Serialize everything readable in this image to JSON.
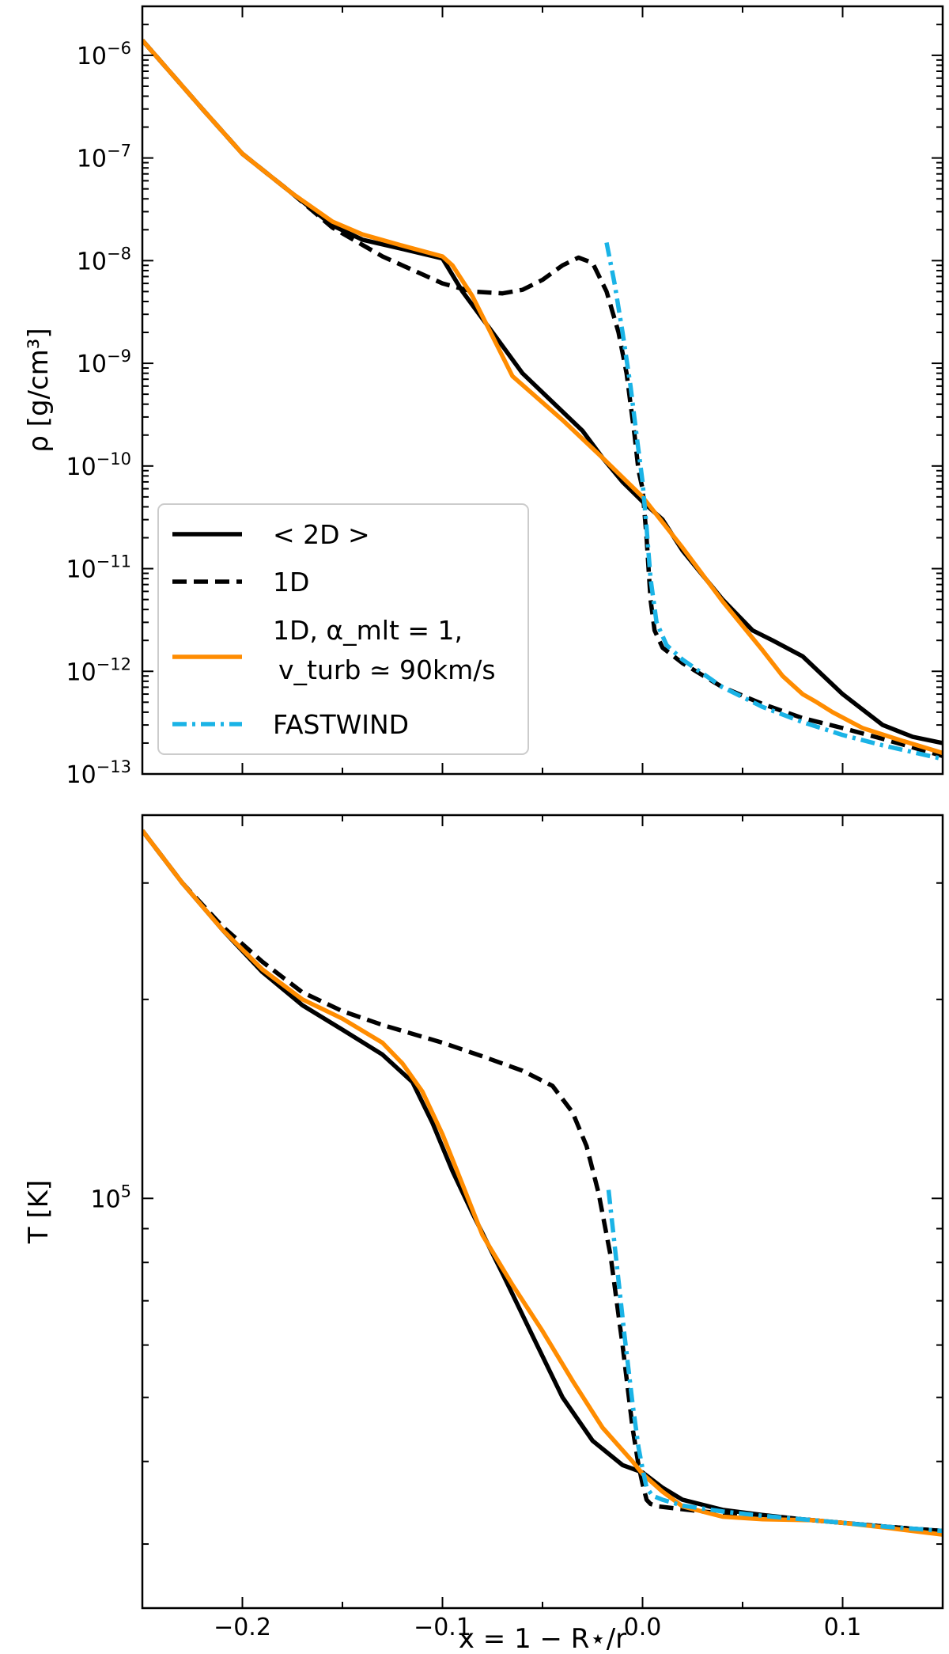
{
  "colors": {
    "two_d": "#000000",
    "one_d": "#000000",
    "one_d_mlt": "#ff8c00",
    "fastwind": "#1ab3e6",
    "frame": "#000000",
    "legend_border": "#cccccc"
  },
  "legend": {
    "placement": "lower-left",
    "entries": [
      {
        "id": "two_d",
        "text": "< 2D >",
        "style": "solid"
      },
      {
        "id": "one_d",
        "text": "1D",
        "style": "dashed"
      },
      {
        "id": "one_d_mlt",
        "line1": "1D,  α_mlt = 1,",
        "line2": "v_turb ≃ 90km/s",
        "style": "solid"
      },
      {
        "id": "fastwind",
        "text": "FASTWIND",
        "style": "dashdot"
      }
    ]
  },
  "xaxis": {
    "label": "x = 1 − R⋆/r",
    "range": [
      -0.25,
      0.15
    ],
    "ticks": [
      -0.2,
      -0.1,
      0.0,
      0.1
    ],
    "tick_labels": [
      "−0.2",
      "−0.1",
      "0.0",
      "0.1"
    ]
  },
  "chart_data": [
    {
      "type": "line",
      "panel": "top",
      "ylabel": "ρ [g/cm³]",
      "yscale": "log",
      "ylim": [
        1e-13,
        3e-06
      ],
      "ytick_labels": [
        {
          "exp": -6,
          "text": "10",
          "sup": "−6"
        },
        {
          "exp": -7,
          "text": "10",
          "sup": "−7"
        },
        {
          "exp": -8,
          "text": "10",
          "sup": "−8"
        },
        {
          "exp": -9,
          "text": "10",
          "sup": "−9"
        },
        {
          "exp": -10,
          "text": "10",
          "sup": "−10"
        },
        {
          "exp": -11,
          "text": "10",
          "sup": "−11"
        },
        {
          "exp": -12,
          "text": "10",
          "sup": "−12"
        },
        {
          "exp": -13,
          "text": "10",
          "sup": "−13"
        }
      ],
      "series": [
        {
          "name": "< 2D >",
          "key": "two_d",
          "x": [
            -0.25,
            -0.22,
            -0.2,
            -0.175,
            -0.155,
            -0.14,
            -0.12,
            -0.1,
            -0.09,
            -0.075,
            -0.06,
            -0.045,
            -0.03,
            -0.02,
            -0.01,
            0.0,
            0.01,
            0.02,
            0.04,
            0.055,
            0.065,
            0.08,
            0.1,
            0.12,
            0.135,
            0.15
          ],
          "y": [
            1.4e-06,
            3e-07,
            1.1e-07,
            4.5e-08,
            2.2e-08,
            1.6e-08,
            1.3e-08,
            1.05e-08,
            5e-09,
            2e-09,
            8e-10,
            4.2e-10,
            2.2e-10,
            1.2e-10,
            7e-11,
            4.5e-11,
            3e-11,
            1.5e-11,
            5e-12,
            2.5e-12,
            2e-12,
            1.4e-12,
            6e-13,
            3e-13,
            2.3e-13,
            2e-13
          ]
        },
        {
          "name": "1D",
          "key": "one_d",
          "x": [
            -0.25,
            -0.22,
            -0.2,
            -0.175,
            -0.155,
            -0.13,
            -0.1,
            -0.085,
            -0.07,
            -0.06,
            -0.05,
            -0.04,
            -0.032,
            -0.025,
            -0.018,
            -0.012,
            -0.008,
            -0.004,
            -0.002,
            0.0,
            0.002,
            0.004,
            0.006,
            0.01,
            0.02,
            0.04,
            0.06,
            0.08,
            0.1,
            0.12,
            0.15
          ],
          "y": [
            1.4e-06,
            3e-07,
            1.1e-07,
            4.5e-08,
            2.1e-08,
            1.1e-08,
            6e-09,
            5e-09,
            4.8e-09,
            5.2e-09,
            6.5e-09,
            9e-09,
            1.07e-08,
            9.5e-09,
            5e-09,
            2e-09,
            8e-10,
            2e-10,
            9e-11,
            6e-11,
            2e-11,
            5e-12,
            2.5e-12,
            1.7e-12,
            1.2e-12,
            7e-13,
            4.8e-13,
            3.5e-13,
            2.8e-13,
            2.2e-13,
            1.5e-13
          ]
        },
        {
          "name": "1D,  α_mlt = 1,  v_turb ≃ 90km/s",
          "key": "one_d_mlt",
          "x": [
            -0.25,
            -0.22,
            -0.2,
            -0.175,
            -0.155,
            -0.14,
            -0.12,
            -0.1,
            -0.095,
            -0.085,
            -0.065,
            -0.04,
            -0.02,
            0.0,
            0.02,
            0.04,
            0.06,
            0.07,
            0.08,
            0.087,
            0.095,
            0.11,
            0.13,
            0.15
          ],
          "y": [
            1.4e-06,
            3e-07,
            1.1e-07,
            4.5e-08,
            2.4e-08,
            1.8e-08,
            1.4e-08,
            1.1e-08,
            9e-09,
            4.5e-09,
            7.5e-10,
            2.8e-10,
            1.2e-10,
            5e-11,
            1.6e-11,
            4.8e-12,
            1.6e-12,
            9e-13,
            6e-13,
            5e-13,
            4e-13,
            2.8e-13,
            2.1e-13,
            1.6e-13
          ]
        },
        {
          "name": "FASTWIND",
          "key": "fastwind",
          "x": [
            -0.018,
            -0.014,
            -0.01,
            -0.006,
            -0.003,
            0.0,
            0.002,
            0.004,
            0.007,
            0.012,
            0.02,
            0.04,
            0.06,
            0.08,
            0.1,
            0.12,
            0.15
          ],
          "y": [
            1.5e-08,
            6e-09,
            2e-09,
            6e-10,
            2e-10,
            7e-11,
            2.5e-11,
            8e-12,
            3e-12,
            1.8e-12,
            1.3e-12,
            7e-13,
            4.5e-13,
            3.2e-13,
            2.4e-13,
            1.9e-13,
            1.4e-13
          ]
        }
      ]
    },
    {
      "type": "line",
      "panel": "bottom",
      "ylabel": "T [K]",
      "yscale": "log",
      "ylim": [
        24000,
        380000
      ],
      "ytick_labels": [
        {
          "exp": 5,
          "text": "10",
          "sup": "5"
        }
      ],
      "series": [
        {
          "name": "< 2D >",
          "key": "two_d",
          "x": [
            -0.25,
            -0.23,
            -0.21,
            -0.19,
            -0.17,
            -0.15,
            -0.13,
            -0.115,
            -0.105,
            -0.095,
            -0.085,
            -0.07,
            -0.055,
            -0.04,
            -0.025,
            -0.01,
            0.0,
            0.01,
            0.02,
            0.04,
            0.06,
            0.08,
            0.1,
            0.12,
            0.15
          ],
          "y": [
            360000,
            300000,
            255000,
            220000,
            196000,
            180000,
            165000,
            150000,
            130000,
            110000,
            95000,
            77000,
            62000,
            50000,
            43000,
            39500,
            38500,
            36500,
            35000,
            33800,
            33200,
            32700,
            32300,
            31900,
            31400
          ]
        },
        {
          "name": "1D",
          "key": "one_d",
          "x": [
            -0.25,
            -0.23,
            -0.21,
            -0.19,
            -0.17,
            -0.15,
            -0.13,
            -0.1,
            -0.08,
            -0.06,
            -0.045,
            -0.035,
            -0.028,
            -0.022,
            -0.016,
            -0.01,
            -0.005,
            -0.002,
            0.0,
            0.002,
            0.004,
            0.008,
            0.015,
            0.03,
            0.05,
            0.08,
            0.1,
            0.12,
            0.15
          ],
          "y": [
            360000,
            300000,
            258000,
            228000,
            205000,
            192000,
            183000,
            172000,
            164000,
            156000,
            148000,
            135000,
            120000,
            102000,
            82000,
            60000,
            45000,
            39500,
            37000,
            35000,
            34500,
            34200,
            34000,
            33600,
            33200,
            32700,
            32300,
            31900,
            31400
          ]
        },
        {
          "name": "1D,  α_mlt = 1,  v_turb ≃ 90km/s",
          "key": "one_d_mlt",
          "x": [
            -0.25,
            -0.23,
            -0.21,
            -0.19,
            -0.17,
            -0.15,
            -0.13,
            -0.12,
            -0.11,
            -0.1,
            -0.09,
            -0.08,
            -0.065,
            -0.05,
            -0.035,
            -0.02,
            -0.005,
            0.0,
            0.01,
            0.02,
            0.04,
            0.06,
            0.085,
            0.1,
            0.12,
            0.15
          ],
          "y": [
            360000,
            300000,
            255000,
            222000,
            200000,
            187000,
            172000,
            160000,
            145000,
            125000,
            105000,
            88000,
            74000,
            63000,
            53000,
            45000,
            40000,
            38300,
            36000,
            34200,
            33000,
            32700,
            32600,
            32300,
            31800,
            31000
          ]
        },
        {
          "name": "FASTWIND",
          "key": "fastwind",
          "x": [
            -0.017,
            -0.013,
            -0.009,
            -0.005,
            -0.002,
            0.0,
            0.002,
            0.005,
            0.01,
            0.02,
            0.04,
            0.06,
            0.08,
            0.1,
            0.12,
            0.15
          ],
          "y": [
            103000,
            80000,
            62000,
            49000,
            42000,
            39000,
            36500,
            35500,
            35000,
            34300,
            33600,
            33100,
            32700,
            32300,
            31900,
            31400
          ]
        }
      ]
    }
  ]
}
